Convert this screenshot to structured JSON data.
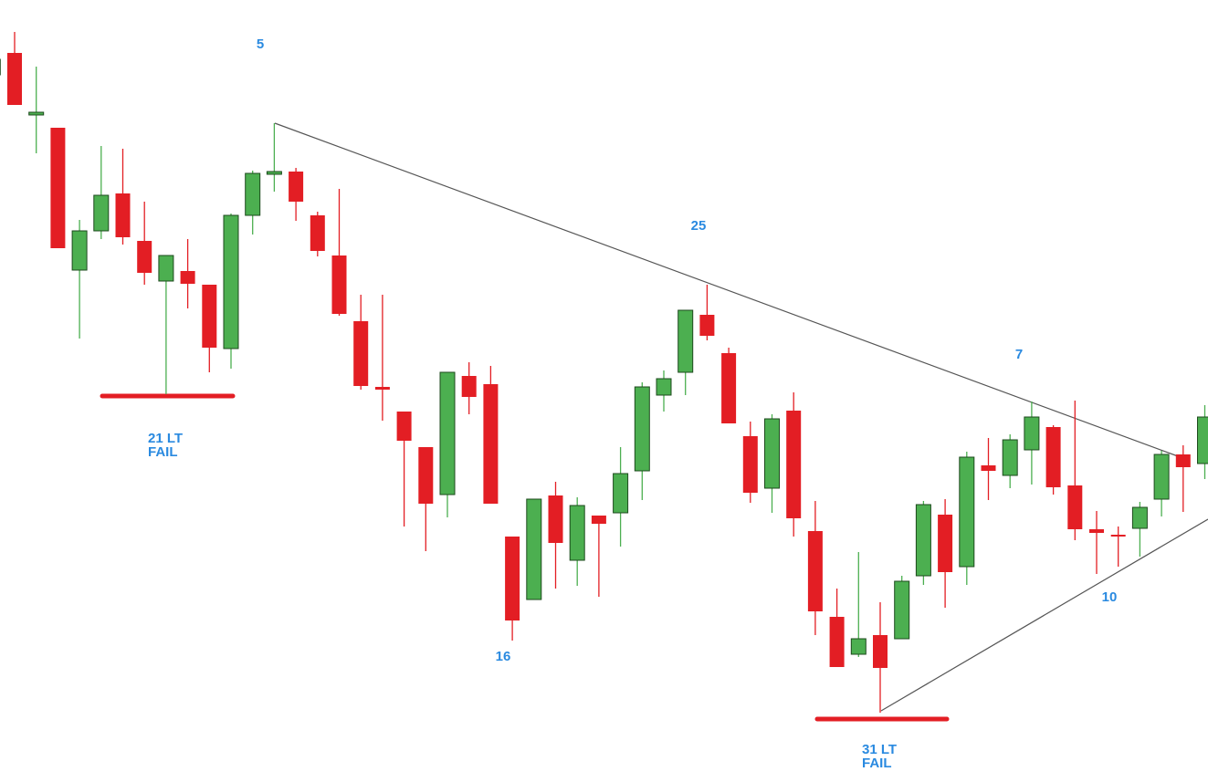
{
  "chart_data": {
    "type": "candlestick",
    "up_color": "#4caf50",
    "down_color": "#e31e24",
    "ylim": [
      0,
      85.7
    ],
    "open": [
      77.5,
      79.9,
      73.1,
      71.7,
      56.1,
      60.4,
      64.5,
      59.3,
      54.9,
      56.0,
      54.5,
      47.5,
      62.1,
      66.6,
      66.9,
      62.1,
      57.7,
      50.5,
      43.3,
      40.6,
      36.7,
      31.5,
      44.5,
      43.6,
      26.9,
      20.0,
      31.4,
      24.3,
      29.2,
      29.5,
      34.1,
      42.4,
      44.9,
      51.2,
      47.0,
      37.9,
      32.2,
      40.7,
      27.5,
      18.1,
      14.0,
      16.1,
      15.7,
      22.6,
      29.3,
      23.6,
      34.7,
      33.6,
      36.4,
      38.9,
      32.5,
      27.7,
      27.1,
      27.8,
      31.0,
      35.9,
      34.9
    ],
    "high": [
      79.5,
      82.2,
      78.4,
      71.7,
      61.6,
      69.7,
      69.4,
      63.6,
      57.7,
      59.5,
      54.5,
      62.3,
      67.0,
      72.2,
      67.3,
      62.5,
      65.0,
      53.4,
      53.4,
      40.6,
      36.7,
      44.9,
      46.0,
      45.6,
      26.9,
      31.0,
      32.9,
      31.2,
      29.2,
      36.7,
      43.8,
      45.1,
      51.7,
      54.5,
      47.6,
      39.5,
      40.3,
      42.7,
      30.8,
      21.2,
      25.2,
      19.7,
      22.6,
      30.8,
      31.0,
      36.2,
      37.7,
      38.1,
      41.7,
      39.1,
      41.8,
      29.7,
      28.0,
      30.7,
      36.3,
      36.9,
      41.3
    ],
    "low": [
      77.3,
      74.2,
      68.9,
      58.5,
      48.6,
      59.5,
      58.9,
      54.5,
      42.5,
      51.9,
      44.9,
      45.3,
      60.0,
      64.7,
      61.5,
      57.6,
      51.1,
      43.0,
      39.6,
      28.0,
      25.3,
      29.0,
      40.3,
      30.5,
      15.5,
      20.0,
      21.2,
      21.5,
      20.3,
      25.8,
      30.9,
      40.6,
      42.4,
      48.4,
      39.3,
      30.6,
      29.5,
      26.9,
      16.1,
      12.6,
      13.7,
      7.6,
      15.7,
      21.6,
      19.1,
      21.6,
      30.9,
      32.2,
      32.6,
      31.5,
      26.5,
      22.8,
      23.6,
      24.7,
      29.1,
      29.6,
      33.2
    ],
    "close": [
      79.2,
      74.2,
      73.4,
      58.5,
      60.4,
      64.3,
      59.7,
      55.8,
      57.7,
      54.6,
      47.6,
      62.1,
      66.7,
      66.9,
      63.6,
      58.2,
      51.3,
      43.4,
      43.0,
      37.4,
      30.5,
      44.9,
      42.2,
      30.5,
      17.7,
      31.0,
      26.2,
      30.3,
      28.3,
      33.8,
      43.3,
      44.2,
      51.7,
      48.9,
      39.3,
      31.7,
      39.8,
      28.9,
      18.7,
      12.6,
      15.7,
      12.5,
      22.0,
      30.4,
      23.0,
      35.6,
      34.1,
      37.5,
      40.0,
      32.3,
      27.7,
      27.3,
      26.9,
      30.1,
      35.9,
      34.5,
      40.0
    ],
    "annotations": [
      "5",
      "25",
      "7",
      "16",
      "10",
      "21 LT",
      "FAIL",
      "31 LT",
      "FAIL"
    ]
  }
}
